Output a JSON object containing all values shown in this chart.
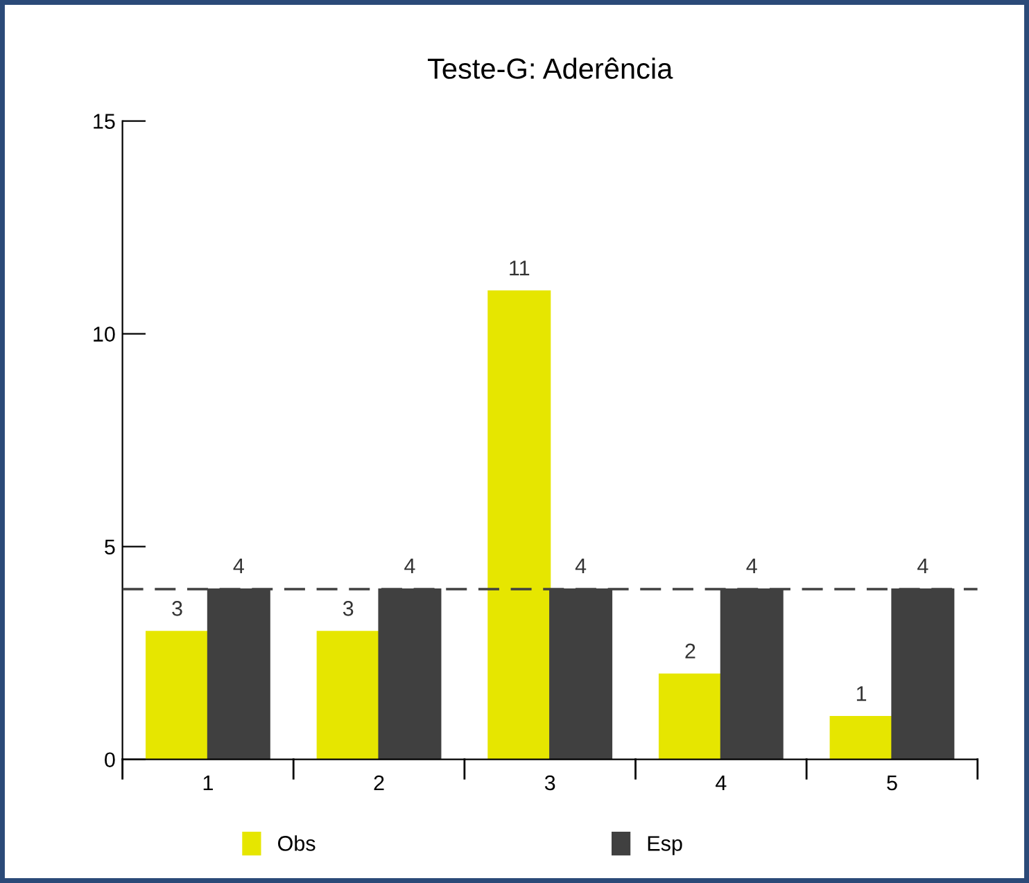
{
  "chart_data": {
    "type": "bar",
    "title": "Teste-G: Aderência",
    "categories": [
      "1",
      "2",
      "3",
      "4",
      "5"
    ],
    "series": [
      {
        "name": "Obs",
        "color": "#e6e600",
        "values": [
          3,
          3,
          11,
          2,
          1
        ]
      },
      {
        "name": "Esp",
        "color": "#404040",
        "values": [
          4,
          4,
          4,
          4,
          4
        ]
      }
    ],
    "ylim": [
      0,
      15
    ],
    "yticks": [
      0,
      5,
      10,
      15
    ],
    "ref_lines": [
      {
        "axis": "y",
        "value": 4,
        "label": null,
        "color": "#404040",
        "line_style": "dashed"
      }
    ],
    "data_labels": true,
    "grid": false,
    "legend": "bottom"
  }
}
